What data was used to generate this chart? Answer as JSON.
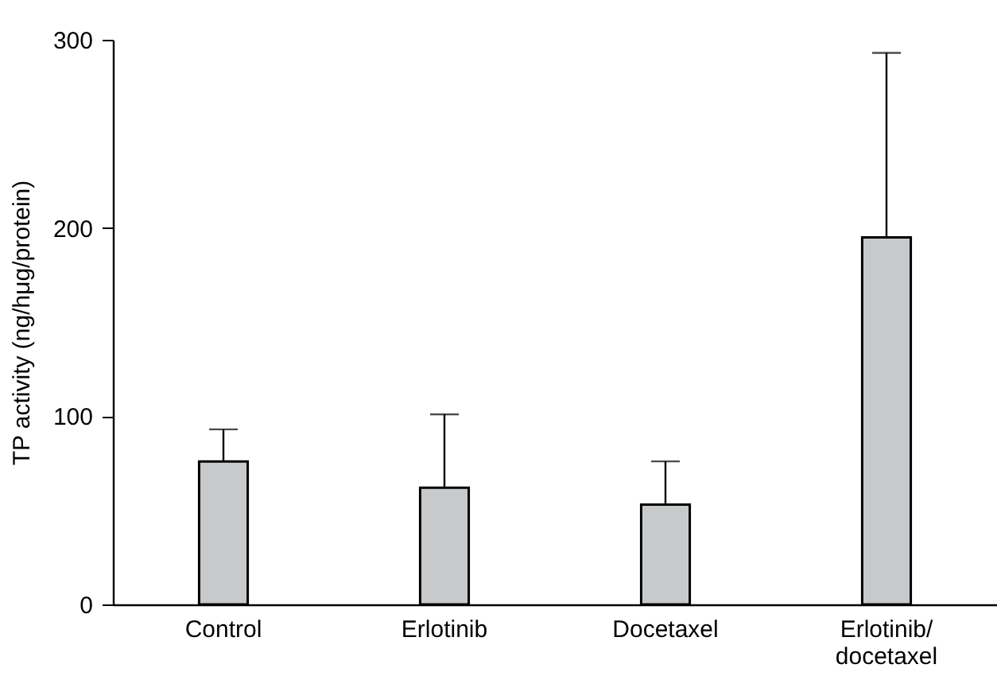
{
  "chart_data": {
    "type": "bar",
    "ylabel": "TP activity (ng/hμg/protein)",
    "categories": [
      "Control",
      "Erlotinib",
      "Docetaxel",
      "Erlotinib/\ndocetaxel"
    ],
    "values": [
      76,
      62,
      53,
      195
    ],
    "errors": [
      [
        76,
        93
      ],
      [
        62,
        101
      ],
      [
        53,
        76
      ],
      [
        195,
        293
      ]
    ],
    "color": "#c8c9cb",
    "ylim": [
      0,
      300
    ],
    "yticks": [
      0,
      100,
      200,
      300
    ],
    "grid": false
  }
}
